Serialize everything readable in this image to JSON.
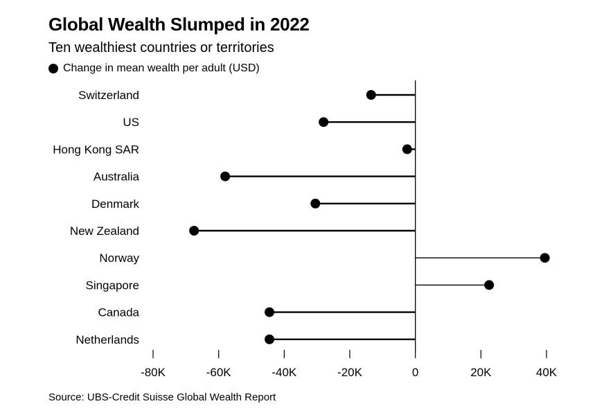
{
  "header": {
    "title": "Global Wealth Slumped in 2022",
    "subtitle": "Ten wealthiest countries or territories"
  },
  "legend": {
    "label": "Change in mean wealth per adult (USD)"
  },
  "footer": {
    "source": "Source: UBS-Credit Suisse Global Wealth Report"
  },
  "chart_data": {
    "type": "dot",
    "title": "Global Wealth Slumped in 2022",
    "subtitle": "Ten wealthiest countries or territories",
    "series": [
      {
        "name": "Change in mean wealth per adult (USD)",
        "color": "#000000",
        "values": [
          -13500,
          -28000,
          -2500,
          -58000,
          -30500,
          -67500,
          39500,
          22500,
          -44500,
          -44500
        ]
      }
    ],
    "categories": [
      "Switzerland",
      "US",
      "Hong Kong SAR",
      "Australia",
      "Denmark",
      "New Zealand",
      "Norway",
      "Singapore",
      "Canada",
      "Netherlands"
    ],
    "xlim": [
      -80000,
      40000
    ],
    "x_ticks": [
      -80000,
      -60000,
      -40000,
      -20000,
      0,
      20000,
      40000
    ],
    "x_tick_labels": [
      "-80K",
      "-60K",
      "-40K",
      "-20K",
      "0",
      "20K",
      "40K"
    ],
    "grid": false,
    "legend_position": "top-left"
  }
}
